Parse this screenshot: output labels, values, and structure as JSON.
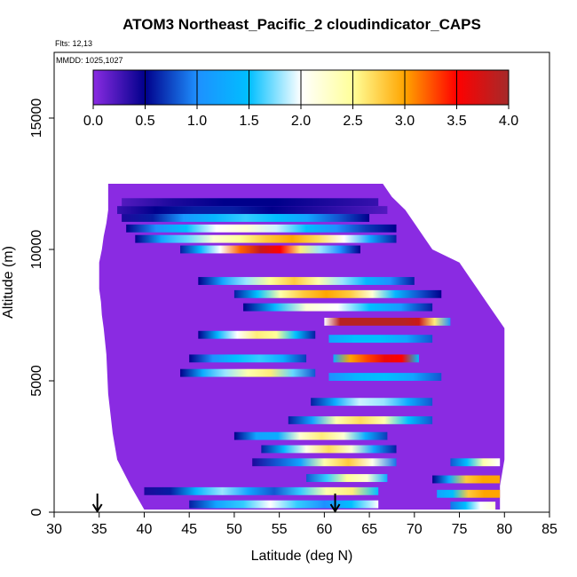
{
  "chart_data": {
    "type": "heatmap",
    "title": "ATOM3 Northeast_Pacific_2 cloudindicator_CAPS",
    "annotations": [
      "Flts: 12,13",
      "MMDD: 1025,1027"
    ],
    "xlabel": "Latitude (deg N)",
    "ylabel": "Altitude (m)",
    "xlim": [
      30,
      85
    ],
    "ylim": [
      0,
      17500
    ],
    "x_ticks": [
      "30",
      "35",
      "40",
      "45",
      "50",
      "55",
      "60",
      "65",
      "70",
      "75",
      "80",
      "85"
    ],
    "y_ticks": [
      "0",
      "5000",
      "10000",
      "15000"
    ],
    "colorbar": {
      "range": [
        0,
        4
      ],
      "tick_labels": [
        "0.0",
        "0.5",
        "1.0",
        "1.5",
        "2.0",
        "2.5",
        "3.0",
        "3.5",
        "4.0"
      ],
      "colors": [
        "#8a2be2",
        "#00008b",
        "#1e90ff",
        "#00bfff",
        "#ffffff",
        "#ffff99",
        "#ffa500",
        "#ff0000",
        "#a52a2a"
      ]
    },
    "grid": false,
    "background_value": 0.0,
    "band_height_m": 300,
    "envelope": [
      {
        "altitude": 100,
        "lat_min": 40.0,
        "lat_max": 79.5
      },
      {
        "altitude": 1000,
        "lat_min": 38.5,
        "lat_max": 79.5
      },
      {
        "altitude": 2000,
        "lat_min": 37.0,
        "lat_max": 80.0
      },
      {
        "altitude": 3000,
        "lat_min": 36.5,
        "lat_max": 80.0
      },
      {
        "altitude": 4500,
        "lat_min": 36.0,
        "lat_max": 80.0
      },
      {
        "altitude": 6000,
        "lat_min": 35.8,
        "lat_max": 80.0
      },
      {
        "altitude": 7000,
        "lat_min": 35.5,
        "lat_max": 80.0
      },
      {
        "altitude": 7500,
        "lat_min": 35.3,
        "lat_max": 79.0
      },
      {
        "altitude": 8000,
        "lat_min": 35.2,
        "lat_max": 78.0
      },
      {
        "altitude": 8500,
        "lat_min": 35.0,
        "lat_max": 77.0
      },
      {
        "altitude": 9000,
        "lat_min": 35.0,
        "lat_max": 76.0
      },
      {
        "altitude": 9500,
        "lat_min": 35.0,
        "lat_max": 75.0
      },
      {
        "altitude": 10000,
        "lat_min": 35.3,
        "lat_max": 72.0
      },
      {
        "altitude": 10500,
        "lat_min": 35.5,
        "lat_max": 71.0
      },
      {
        "altitude": 11000,
        "lat_min": 35.8,
        "lat_max": 70.0
      },
      {
        "altitude": 11500,
        "lat_min": 36.0,
        "lat_max": 69.0
      },
      {
        "altitude": 12000,
        "lat_min": 36.0,
        "lat_max": 67.5
      },
      {
        "altitude": 12500,
        "lat_min": 36.0,
        "lat_max": 66.5
      }
    ],
    "bands": [
      {
        "altitude": 11800,
        "lat_start": 37.5,
        "lat_end": 66.0,
        "values": [
          0.2,
          0.4,
          0.5,
          0.5,
          0.4,
          0.3
        ]
      },
      {
        "altitude": 11500,
        "lat_start": 37.0,
        "lat_end": 67.0,
        "values": [
          0.3,
          0.5,
          0.6,
          0.6,
          0.5,
          0.4,
          0.3,
          0.2
        ]
      },
      {
        "altitude": 11200,
        "lat_start": 37.5,
        "lat_end": 65.0,
        "values": [
          0.4,
          0.6,
          1.1,
          1.4,
          1.6,
          1.5,
          1.2,
          0.8,
          0.5
        ]
      },
      {
        "altitude": 10800,
        "lat_start": 38.0,
        "lat_end": 68.0,
        "values": [
          0.5,
          1.0,
          1.5,
          2.0,
          2.2,
          1.9,
          1.5,
          1.0,
          0.7,
          0.5
        ]
      },
      {
        "altitude": 10400,
        "lat_start": 39.0,
        "lat_end": 68.0,
        "values": [
          0.5,
          1.2,
          1.7,
          2.2,
          2.5,
          2.8,
          3.0,
          2.7,
          2.0,
          1.2,
          0.6
        ]
      },
      {
        "altitude": 10000,
        "lat_start": 44.0,
        "lat_end": 64.0,
        "values": [
          0.6,
          1.4,
          2.0,
          3.2,
          3.8,
          3.5,
          2.6,
          1.8,
          1.0,
          0.5
        ]
      },
      {
        "altitude": 8800,
        "lat_start": 46.0,
        "lat_end": 70.0,
        "values": [
          0.5,
          1.2,
          1.8,
          2.5,
          2.8,
          2.4,
          1.8,
          1.4,
          1.0,
          0.6
        ]
      },
      {
        "altitude": 8300,
        "lat_start": 50.0,
        "lat_end": 73.0,
        "values": [
          0.6,
          1.5,
          2.4,
          2.8,
          3.0,
          2.8,
          2.2,
          1.4,
          0.8,
          0.5
        ]
      },
      {
        "altitude": 7800,
        "lat_start": 51.0,
        "lat_end": 72.0,
        "values": [
          0.5,
          1.4,
          2.2,
          2.0,
          1.5,
          1.1,
          0.6
        ]
      },
      {
        "altitude": 7250,
        "lat_start": 60.0,
        "lat_end": 74.0,
        "values": [
          2.0,
          3.9,
          3.9,
          3.9,
          3.9,
          3.9,
          3.8,
          2.6,
          1.0
        ]
      },
      {
        "altitude": 6750,
        "lat_start": 46.0,
        "lat_end": 59.0,
        "values": [
          0.5,
          1.4,
          2.0,
          2.6,
          2.5,
          1.5,
          0.6
        ]
      },
      {
        "altitude": 6600,
        "lat_start": 60.5,
        "lat_end": 72.0,
        "values": [
          1.2,
          1.5,
          1.5,
          1.2,
          0.8
        ]
      },
      {
        "altitude": 5850,
        "lat_start": 61.0,
        "lat_end": 70.5,
        "values": [
          1.3,
          3.0,
          3.3,
          3.6,
          3.5,
          1.5
        ]
      },
      {
        "altitude": 5850,
        "lat_start": 45.0,
        "lat_end": 58.0,
        "values": [
          0.5,
          1.0,
          1.5,
          1.6,
          1.3,
          0.7
        ]
      },
      {
        "altitude": 5300,
        "lat_start": 44.0,
        "lat_end": 59.0,
        "values": [
          0.5,
          1.3,
          1.8,
          2.4,
          2.6,
          1.7,
          0.8
        ]
      },
      {
        "altitude": 5150,
        "lat_start": 60.5,
        "lat_end": 73.0,
        "values": [
          1.0,
          1.4,
          1.5,
          1.2,
          0.8
        ]
      },
      {
        "altitude": 4200,
        "lat_start": 58.5,
        "lat_end": 72.0,
        "values": [
          0.6,
          1.3,
          1.9,
          1.8,
          1.3,
          0.8
        ]
      },
      {
        "altitude": 3500,
        "lat_start": 56.0,
        "lat_end": 72.0,
        "values": [
          0.6,
          1.2,
          2.4,
          2.7,
          2.4,
          1.5,
          0.8
        ]
      },
      {
        "altitude": 2900,
        "lat_start": 50.0,
        "lat_end": 67.0,
        "values": [
          0.5,
          1.2,
          1.3,
          2.2,
          2.6,
          2.2,
          1.3,
          0.7
        ]
      },
      {
        "altitude": 2400,
        "lat_start": 53.0,
        "lat_end": 68.0,
        "values": [
          0.6,
          1.4,
          2.1,
          2.7,
          2.2,
          1.2,
          0.6
        ]
      },
      {
        "altitude": 1900,
        "lat_start": 52.0,
        "lat_end": 68.0,
        "values": [
          0.4,
          0.8,
          1.2,
          2.4,
          2.8,
          2.1,
          0.9
        ]
      },
      {
        "altitude": 1300,
        "lat_start": 58.0,
        "lat_end": 67.0,
        "values": [
          0.8,
          1.6,
          2.5,
          2.2,
          1.3
        ]
      },
      {
        "altitude": 800,
        "lat_start": 40.0,
        "lat_end": 66.0,
        "values": [
          0.4,
          0.6,
          1.4,
          1.8,
          1.2,
          0.8,
          1.6,
          2.4,
          2.6,
          1.5
        ]
      },
      {
        "altitude": 300,
        "lat_start": 45.0,
        "lat_end": 66.0,
        "values": [
          0.6,
          1.2,
          1.6,
          2.0,
          1.6,
          1.0,
          1.5,
          2.0
        ]
      },
      {
        "altitude": 1900,
        "lat_start": 74.0,
        "lat_end": 79.5,
        "values": [
          0.8,
          1.5,
          2.4,
          2.0
        ]
      },
      {
        "altitude": 1250,
        "lat_start": 72.0,
        "lat_end": 79.5,
        "values": [
          0.5,
          1.3,
          2.8,
          3.0,
          3.0
        ]
      },
      {
        "altitude": 700,
        "lat_start": 72.5,
        "lat_end": 79.5,
        "values": [
          1.2,
          1.5,
          2.8,
          3.0,
          3.0
        ]
      },
      {
        "altitude": 250,
        "lat_start": 74.0,
        "lat_end": 79.0,
        "values": [
          0.9,
          1.5,
          2.0,
          2.2
        ]
      }
    ],
    "arrows_latitude": [
      34.8,
      61.2
    ]
  }
}
